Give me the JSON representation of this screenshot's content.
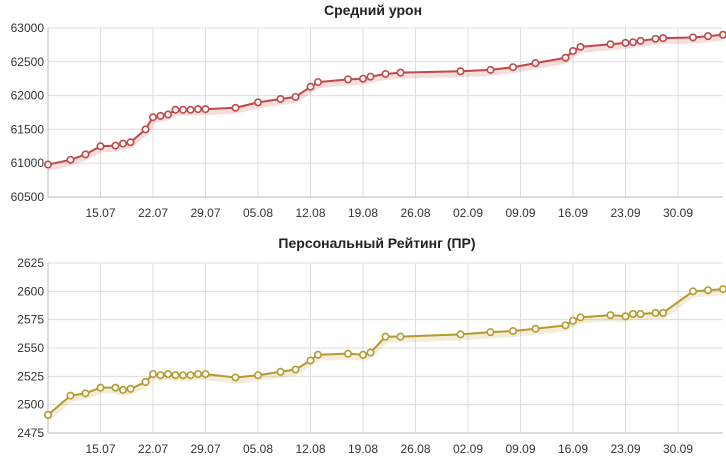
{
  "chart_data": [
    {
      "type": "line",
      "title": "Средний урон",
      "xlabel": "",
      "ylabel": "",
      "ylim": [
        60500,
        63000
      ],
      "yticks": [
        60500,
        61000,
        61500,
        62000,
        62500,
        63000
      ],
      "xlim": [
        "2019-07-08",
        "2019-10-06"
      ],
      "xticks": [
        "2019-07-15",
        "2019-07-22",
        "2019-07-29",
        "2019-08-05",
        "2019-08-12",
        "2019-08-19",
        "2019-08-26",
        "2019-09-02",
        "2019-09-09",
        "2019-09-16",
        "2019-09-23",
        "2019-09-30"
      ],
      "xtick_labels": [
        "15.07",
        "22.07",
        "29.07",
        "05.08",
        "12.08",
        "19.08",
        "26.08",
        "02.09",
        "09.09",
        "16.09",
        "23.09",
        "30.09"
      ],
      "grid": true,
      "color": "#c04848",
      "series": [
        {
          "x": [
            "2019-07-08",
            "2019-07-11",
            "2019-07-13",
            "2019-07-15",
            "2019-07-17",
            "2019-07-18",
            "2019-07-19",
            "2019-07-21",
            "2019-07-22",
            "2019-07-23",
            "2019-07-24",
            "2019-07-25",
            "2019-07-26",
            "2019-07-27",
            "2019-07-28",
            "2019-07-29",
            "2019-08-02",
            "2019-08-05",
            "2019-08-08",
            "2019-08-10",
            "2019-08-12",
            "2019-08-13",
            "2019-08-17",
            "2019-08-19",
            "2019-08-20",
            "2019-08-22",
            "2019-08-24",
            "2019-09-01",
            "2019-09-05",
            "2019-09-08",
            "2019-09-11",
            "2019-09-15",
            "2019-09-16",
            "2019-09-17",
            "2019-09-21",
            "2019-09-23",
            "2019-09-24",
            "2019-09-25",
            "2019-09-27",
            "2019-09-28",
            "2019-10-02",
            "2019-10-04",
            "2019-10-06"
          ],
          "y": [
            60980,
            61050,
            61130,
            61250,
            61260,
            61290,
            61310,
            61500,
            61680,
            61700,
            61720,
            61790,
            61790,
            61790,
            61800,
            61800,
            61820,
            61900,
            61950,
            61980,
            62130,
            62200,
            62240,
            62250,
            62280,
            62320,
            62340,
            62360,
            62380,
            62420,
            62480,
            62560,
            62660,
            62720,
            62760,
            62780,
            62790,
            62810,
            62840,
            62850,
            62860,
            62880,
            62900
          ]
        }
      ]
    },
    {
      "type": "line",
      "title": "Персональный Рейтинг (ПР)",
      "xlabel": "",
      "ylabel": "",
      "ylim": [
        2475,
        2625
      ],
      "yticks": [
        2475,
        2500,
        2525,
        2550,
        2575,
        2600,
        2625
      ],
      "xlim": [
        "2019-07-08",
        "2019-10-06"
      ],
      "xticks": [
        "2019-07-15",
        "2019-07-22",
        "2019-07-29",
        "2019-08-05",
        "2019-08-12",
        "2019-08-19",
        "2019-08-26",
        "2019-09-02",
        "2019-09-09",
        "2019-09-16",
        "2019-09-23",
        "2019-09-30"
      ],
      "xtick_labels": [
        "15.07",
        "22.07",
        "29.07",
        "05.08",
        "12.08",
        "19.08",
        "26.08",
        "02.09",
        "09.09",
        "16.09",
        "23.09",
        "30.09"
      ],
      "grid": true,
      "color": "#b59a2e",
      "series": [
        {
          "x": [
            "2019-07-08",
            "2019-07-11",
            "2019-07-13",
            "2019-07-15",
            "2019-07-17",
            "2019-07-18",
            "2019-07-19",
            "2019-07-21",
            "2019-07-22",
            "2019-07-23",
            "2019-07-24",
            "2019-07-25",
            "2019-07-26",
            "2019-07-27",
            "2019-07-28",
            "2019-07-29",
            "2019-08-02",
            "2019-08-05",
            "2019-08-08",
            "2019-08-10",
            "2019-08-12",
            "2019-08-13",
            "2019-08-17",
            "2019-08-19",
            "2019-08-20",
            "2019-08-22",
            "2019-08-24",
            "2019-09-01",
            "2019-09-05",
            "2019-09-08",
            "2019-09-11",
            "2019-09-15",
            "2019-09-16",
            "2019-09-17",
            "2019-09-21",
            "2019-09-23",
            "2019-09-24",
            "2019-09-25",
            "2019-09-27",
            "2019-09-28",
            "2019-10-02",
            "2019-10-04",
            "2019-10-06"
          ],
          "y": [
            2491,
            2508,
            2510,
            2515,
            2515,
            2513,
            2514,
            2520,
            2527,
            2526,
            2527,
            2526,
            2526,
            2526,
            2527,
            2527,
            2524,
            2526,
            2529,
            2531,
            2539,
            2544,
            2545,
            2544,
            2546,
            2560,
            2560,
            2562,
            2564,
            2565,
            2567,
            2570,
            2574,
            2577,
            2579,
            2578,
            2580,
            2580,
            2581,
            2581,
            2600,
            2601,
            2602
          ]
        }
      ]
    }
  ]
}
